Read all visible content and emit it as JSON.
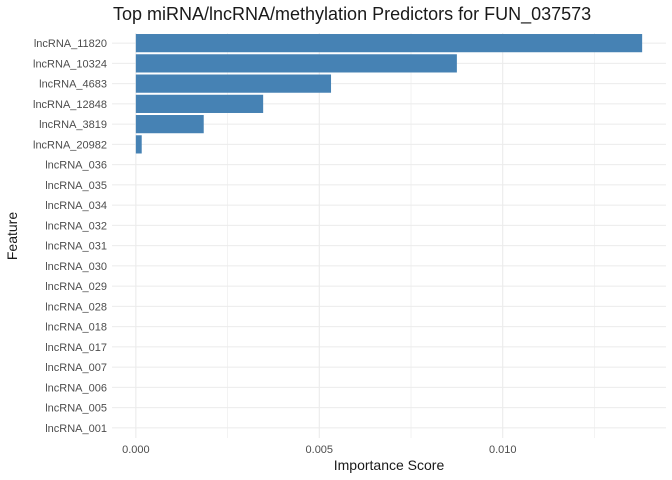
{
  "chart_data": {
    "type": "bar",
    "orientation": "horizontal",
    "title": "Top miRNA/lncRNA/methylation Predictors for FUN_037573",
    "xlabel": "Importance Score",
    "ylabel": "Feature",
    "categories": [
      "lncRNA_11820",
      "lncRNA_10324",
      "lncRNA_4683",
      "lncRNA_12848",
      "lncRNA_3819",
      "lncRNA_20982",
      "lncRNA_036",
      "lncRNA_035",
      "lncRNA_034",
      "lncRNA_032",
      "lncRNA_031",
      "lncRNA_030",
      "lncRNA_029",
      "lncRNA_028",
      "lncRNA_018",
      "lncRNA_017",
      "lncRNA_007",
      "lncRNA_006",
      "lncRNA_005",
      "lncRNA_001"
    ],
    "values": [
      0.0138,
      0.00875,
      0.00532,
      0.00347,
      0.00185,
      0.00016,
      0,
      0,
      0,
      0,
      0,
      0,
      0,
      0,
      0,
      0,
      0,
      0,
      0,
      0
    ],
    "xlim": [
      -0.00065,
      0.01445
    ],
    "xticks": [
      0.0,
      0.005,
      0.01
    ],
    "xtick_labels": [
      "0.000",
      "0.005",
      "0.010"
    ],
    "grid": true,
    "bar_color": "#4682b4",
    "grid_color": "#ebebeb"
  }
}
